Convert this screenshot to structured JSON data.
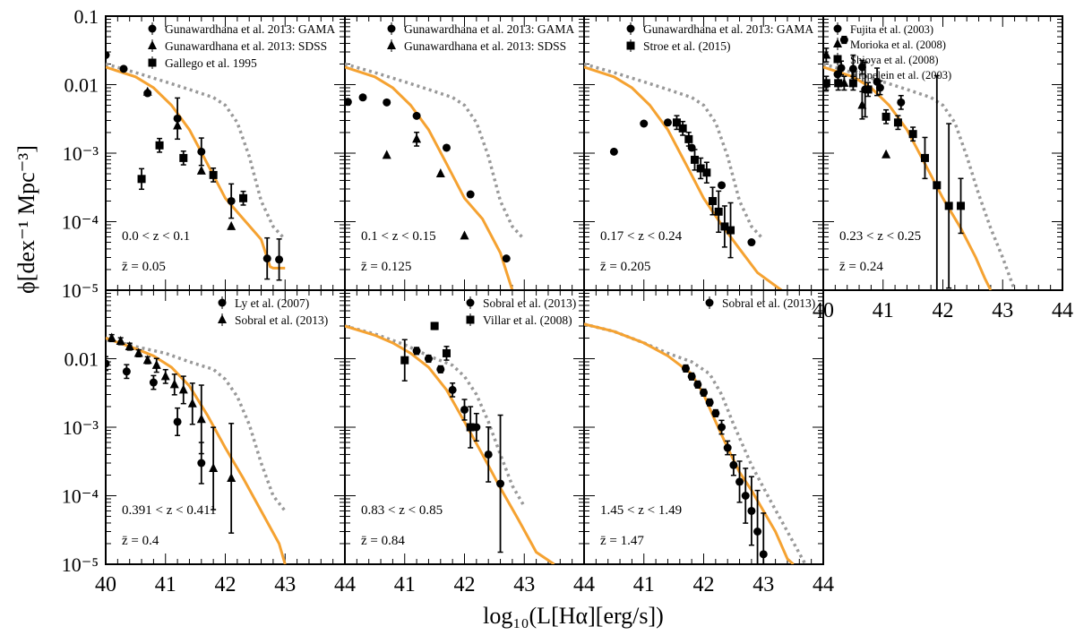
{
  "figure": {
    "ylabel": "ϕ[dex⁻¹ Mpc⁻³]",
    "xlabel": "log₁₀(L[Hα][erg/s])",
    "colors": {
      "model": "#f5a231",
      "alt_model": "#999999",
      "data": "#000000"
    }
  },
  "chart_data": [
    {
      "type": "scatter",
      "panel": "0.0<z<0.1",
      "xlim": [
        40,
        44
      ],
      "ylim": [
        1e-05,
        0.1
      ],
      "yscale": "log",
      "xticks": [],
      "yticks": [
        "0.1",
        "0.01",
        "10⁻³",
        "10⁻⁴",
        "10⁻⁵"
      ],
      "zrange": "0.0 < z < 0.1",
      "zmean": "z̄ = 0.05",
      "series": [
        {
          "name": "Gunawardhana et al. 2013: GAMA",
          "marker": "circle",
          "x": [
            40.0,
            40.3,
            40.7,
            41.2,
            41.6,
            42.1,
            42.7,
            42.9
          ],
          "y": [
            0.027,
            0.017,
            0.0075,
            0.0032,
            0.00105,
            0.0002,
            2.9e-05,
            2.8e-05
          ],
          "err": [
            0,
            0,
            0,
            0.3,
            0.2,
            0.25,
            0.3,
            0.3
          ]
        },
        {
          "name": "Gunawardhana et al. 2013: SDSS",
          "marker": "triangle",
          "x": [
            40.7,
            41.2,
            41.6,
            42.1
          ],
          "y": [
            0.0078,
            0.0025,
            0.00055,
            8.5e-05
          ],
          "err": [
            0,
            0,
            0,
            0
          ]
        },
        {
          "name": "Gallego et al. 1995",
          "marker": "square",
          "x": [
            40.6,
            40.9,
            41.3,
            41.8,
            42.3
          ],
          "y": [
            0.00042,
            0.0013,
            0.00085,
            0.00048,
            0.00022
          ],
          "err": [
            0.15,
            0.1,
            0.1,
            0.1,
            0.1
          ]
        }
      ],
      "model": {
        "x": [
          40.0,
          40.5,
          40.8,
          41.1,
          41.4,
          41.7,
          42.0,
          42.3,
          42.6,
          42.75,
          42.8,
          43.0
        ],
        "y": [
          0.018,
          0.013,
          0.009,
          0.005,
          0.0022,
          0.0007,
          0.00022,
          0.00011,
          5.5e-05,
          2.2e-05,
          2.1e-05,
          2.1e-05
        ]
      },
      "alt_model": {
        "x": [
          40.0,
          40.5,
          41.0,
          41.4,
          41.8,
          42.0,
          42.2,
          42.4,
          42.6,
          42.8,
          43.0
        ],
        "y": [
          0.02,
          0.015,
          0.011,
          0.0085,
          0.0065,
          0.005,
          0.0028,
          0.0009,
          0.0002,
          8.5e-05,
          5.5e-05
        ]
      }
    },
    {
      "type": "scatter",
      "panel": "0.1<z<0.15",
      "xlim": [
        40,
        44
      ],
      "ylim": [
        1e-05,
        0.1
      ],
      "yscale": "log",
      "xticks": [],
      "yticks": [],
      "zrange": "0.1 < z < 0.15",
      "zmean": "z̄ = 0.125",
      "series": [
        {
          "name": "Gunawardhana et al. 2013: GAMA",
          "marker": "circle",
          "x": [
            40.05,
            40.3,
            40.7,
            41.2,
            41.7,
            42.1,
            42.7
          ],
          "y": [
            0.0056,
            0.0065,
            0.0055,
            0.0035,
            0.0012,
            0.00025,
            2.9e-05
          ],
          "err": [
            0,
            0,
            0,
            0,
            0,
            0,
            0
          ]
        },
        {
          "name": "Gunawardhana et al. 2013: SDSS",
          "marker": "triangle",
          "x": [
            40.7,
            41.2,
            41.6,
            42.0
          ],
          "y": [
            0.00093,
            0.0016,
            0.0005,
            6.2e-05
          ],
          "err": [
            0,
            0.1,
            0,
            0
          ]
        }
      ],
      "model": {
        "x": [
          40.0,
          40.5,
          40.8,
          41.1,
          41.4,
          41.7,
          42.0,
          42.3,
          42.6,
          42.8
        ],
        "y": [
          0.018,
          0.013,
          0.009,
          0.005,
          0.0022,
          0.0007,
          0.00022,
          0.00011,
          3.5e-05,
          1e-05
        ]
      },
      "alt_model": {
        "x": [
          40.0,
          40.5,
          41.0,
          41.4,
          41.8,
          42.0,
          42.2,
          42.4,
          42.6,
          42.8,
          43.0
        ],
        "y": [
          0.02,
          0.015,
          0.011,
          0.0085,
          0.0065,
          0.005,
          0.0028,
          0.0009,
          0.0002,
          8.5e-05,
          5.5e-05
        ]
      }
    },
    {
      "type": "scatter",
      "panel": "0.17<z<0.24",
      "xlim": [
        40,
        44
      ],
      "ylim": [
        1e-05,
        0.1
      ],
      "yscale": "log",
      "xticks": [],
      "yticks": [],
      "zrange": "0.17 < z < 0.24",
      "zmean": "z̄ = 0.205",
      "series": [
        {
          "name": "Gunawardhana et al. 2013: GAMA",
          "marker": "circle",
          "x": [
            40.5,
            41.0,
            41.4,
            41.8,
            42.3,
            42.8
          ],
          "y": [
            0.00105,
            0.0027,
            0.0028,
            0.0012,
            0.00034,
            5e-05
          ],
          "err": [
            0,
            0,
            0,
            0,
            0,
            0
          ]
        },
        {
          "name": "Stroe et al. (2015)",
          "marker": "square",
          "x": [
            41.55,
            41.65,
            41.75,
            41.85,
            41.95,
            42.05,
            42.15,
            42.25,
            42.35,
            42.45
          ],
          "y": [
            0.0028,
            0.0023,
            0.0016,
            0.0008,
            0.0006,
            0.00052,
            0.0002,
            0.00014,
            8.5e-05,
            7.5e-05
          ],
          "err": [
            0.1,
            0.1,
            0.1,
            0.15,
            0.15,
            0.15,
            0.2,
            0.3,
            0.3,
            0.4
          ]
        }
      ],
      "model": {
        "x": [
          40.0,
          40.5,
          40.8,
          41.1,
          41.4,
          41.7,
          42.0,
          42.3,
          42.6,
          42.9,
          43.3
        ],
        "y": [
          0.018,
          0.013,
          0.009,
          0.005,
          0.0022,
          0.0007,
          0.00022,
          9e-05,
          4e-05,
          1.8e-05,
          1e-05
        ]
      },
      "alt_model": {
        "x": [
          40.0,
          40.5,
          41.0,
          41.4,
          41.8,
          42.0,
          42.2,
          42.4,
          42.6,
          42.8,
          43.0
        ],
        "y": [
          0.02,
          0.015,
          0.011,
          0.0085,
          0.0065,
          0.005,
          0.0028,
          0.0009,
          0.0002,
          8.5e-05,
          5.5e-05
        ]
      }
    },
    {
      "type": "scatter",
      "panel": "0.23<z<0.25",
      "xlim": [
        40,
        44
      ],
      "ylim": [
        1e-05,
        0.1
      ],
      "yscale": "log",
      "xticks": [
        "40",
        "41",
        "42",
        "43",
        "44"
      ],
      "yticks": [],
      "zrange": "0.23 < z < 0.25",
      "zmean": "z̄ = 0.24",
      "series": [
        {
          "name": "Fujita et al. (2003)",
          "marker": "circle",
          "x": [
            40.35,
            40.65,
            40.95,
            41.3
          ],
          "y": [
            0.045,
            0.018,
            0.009,
            0.0055
          ],
          "err": [
            0.05,
            0.1,
            0.1,
            0.1
          ]
        },
        {
          "name": "Morioka et al. (2008)",
          "marker": "triangle",
          "x": [
            40.05,
            40.35,
            40.65,
            41.05
          ],
          "y": [
            0.027,
            0.0105,
            0.005,
            0.00095
          ],
          "err": [
            0.1,
            0.1,
            0.2,
            0
          ]
        },
        {
          "name": "Shioya et al. (2008)",
          "marker": "square",
          "x": [
            40.05,
            40.25,
            40.5,
            40.75,
            41.05,
            41.25,
            41.5,
            41.7,
            41.9,
            42.1,
            42.3
          ],
          "y": [
            0.0105,
            0.0105,
            0.0105,
            0.0085,
            0.0034,
            0.0028,
            0.0019,
            0.00085,
            0.00034,
            0.00017,
            0.00017
          ],
          "err": [
            0.1,
            0.1,
            0.1,
            0.1,
            0.1,
            0.1,
            0.1,
            0.3,
            1.6,
            1.2,
            0.4
          ]
        },
        {
          "name": "Hippelein et al. (2003)",
          "marker": "circle",
          "x": [
            40.3,
            40.5,
            40.7,
            40.9
          ],
          "y": [
            0.0175,
            0.017,
            0.0085,
            0.011
          ],
          "err": [
            0.1,
            0.2,
            0.4,
            0.2
          ]
        }
      ],
      "model": {
        "x": [
          40.0,
          40.5,
          40.8,
          41.1,
          41.4,
          41.7,
          42.0,
          42.3,
          42.55,
          42.7,
          42.8
        ],
        "y": [
          0.018,
          0.013,
          0.009,
          0.005,
          0.0022,
          0.0007,
          0.00022,
          8e-05,
          3e-05,
          1.5e-05,
          1e-05
        ]
      },
      "alt_model": {
        "x": [
          40.0,
          40.5,
          41.0,
          41.4,
          41.8,
          42.0,
          42.2,
          42.4,
          42.6,
          42.8,
          43.0,
          43.2
        ],
        "y": [
          0.02,
          0.015,
          0.011,
          0.0085,
          0.0065,
          0.005,
          0.0028,
          0.0009,
          0.00025,
          8e-05,
          3e-05,
          1e-05
        ]
      }
    },
    {
      "type": "scatter",
      "panel": "0.391<z<0.411",
      "xlim": [
        40,
        44
      ],
      "ylim": [
        1e-05,
        0.1
      ],
      "yscale": "log",
      "xticks": [
        "40",
        "41",
        "42",
        "43",
        "44"
      ],
      "yticks": [
        "0.01",
        "10⁻³",
        "10⁻⁴",
        "10⁻⁵"
      ],
      "zrange": "0.391 < z < 0.411",
      "zmean": "z̄ = 0.4",
      "series": [
        {
          "name": "Ly et al. (2007)",
          "marker": "circle",
          "x": [
            40.0,
            40.35,
            40.8,
            41.2,
            41.6
          ],
          "y": [
            0.0085,
            0.0065,
            0.0045,
            0.0012,
            0.0003
          ],
          "err": [
            0.1,
            0.1,
            0.1,
            0.2,
            0.3
          ]
        },
        {
          "name": "Sobral et al. (2013)",
          "marker": "triangle",
          "x": [
            40.1,
            40.25,
            40.4,
            40.55,
            40.7,
            40.85,
            41.0,
            41.15,
            41.3,
            41.45,
            41.6,
            41.8,
            42.1
          ],
          "y": [
            0.02,
            0.018,
            0.015,
            0.012,
            0.0095,
            0.008,
            0.0055,
            0.0042,
            0.0035,
            0.0022,
            0.0013,
            0.00025,
            0.00018
          ],
          "err": [
            0.05,
            0.05,
            0.05,
            0.05,
            0.05,
            0.1,
            0.1,
            0.15,
            0.2,
            0.3,
            0.5,
            0.6,
            0.8
          ]
        }
      ],
      "model": {
        "x": [
          40.0,
          40.5,
          40.8,
          41.1,
          41.4,
          41.7,
          42.0,
          42.3,
          42.6,
          42.9,
          43.0
        ],
        "y": [
          0.02,
          0.014,
          0.011,
          0.0075,
          0.004,
          0.0015,
          0.0005,
          0.00018,
          6e-05,
          2e-05,
          1e-05
        ]
      },
      "alt_model": {
        "x": [
          40.0,
          40.5,
          41.0,
          41.4,
          41.8,
          42.0,
          42.2,
          42.4,
          42.6,
          42.8,
          43.0
        ],
        "y": [
          0.02,
          0.015,
          0.012,
          0.009,
          0.007,
          0.005,
          0.0028,
          0.0011,
          0.0003,
          0.0001,
          6e-05
        ]
      }
    },
    {
      "type": "scatter",
      "panel": "0.83<z<0.85",
      "xlim": [
        40,
        44
      ],
      "ylim": [
        1e-05,
        0.1
      ],
      "yscale": "log",
      "xticks": [
        "41",
        "42",
        "43",
        "44"
      ],
      "yticks": [],
      "zrange": "0.83 < z < 0.85",
      "zmean": "z̄ = 0.84",
      "series": [
        {
          "name": "Sobral et al. (2013)",
          "marker": "circle",
          "x": [
            41.2,
            41.4,
            41.6,
            41.8,
            42.0,
            42.2,
            42.4,
            42.6
          ],
          "y": [
            0.013,
            0.01,
            0.007,
            0.0035,
            0.0018,
            0.001,
            0.0004,
            0.00015
          ],
          "err": [
            0.05,
            0.05,
            0.05,
            0.1,
            0.15,
            0.2,
            0.4,
            1.0
          ]
        },
        {
          "name": "Villar et al. (2008)",
          "marker": "square",
          "x": [
            41.0,
            41.5,
            41.7,
            42.1
          ],
          "y": [
            0.0095,
            0.03,
            0.012,
            0.001
          ],
          "err": [
            0.3,
            0.05,
            0.1,
            0.3
          ]
        }
      ],
      "model": {
        "x": [
          40.0,
          40.5,
          40.8,
          41.1,
          41.4,
          41.7,
          42.0,
          42.3,
          42.6,
          42.9,
          43.2,
          43.5
        ],
        "y": [
          0.03,
          0.022,
          0.017,
          0.012,
          0.0075,
          0.0035,
          0.0012,
          0.0004,
          0.00013,
          4.5e-05,
          1.5e-05,
          1e-05
        ]
      },
      "alt_model": {
        "x": [
          40.0,
          40.5,
          41.0,
          41.4,
          41.8,
          42.0,
          42.2,
          42.4,
          42.6,
          42.8,
          43.0
        ],
        "y": [
          0.03,
          0.023,
          0.016,
          0.011,
          0.008,
          0.0055,
          0.003,
          0.0012,
          0.0004,
          0.00014,
          7e-05
        ]
      }
    },
    {
      "type": "scatter",
      "panel": "1.45<z<1.49",
      "xlim": [
        40,
        44
      ],
      "ylim": [
        1e-05,
        0.1
      ],
      "yscale": "log",
      "xticks": [
        "41",
        "42",
        "43",
        "44"
      ],
      "yticks": [],
      "zrange": "1.45 < z < 1.49",
      "zmean": "z̄ = 1.47",
      "series": [
        {
          "name": "Sobral et al. (2013)",
          "marker": "circle",
          "x": [
            41.7,
            41.8,
            41.9,
            42.0,
            42.1,
            42.2,
            42.3,
            42.4,
            42.5,
            42.6,
            42.7,
            42.8,
            42.9,
            43.0
          ],
          "y": [
            0.0072,
            0.0055,
            0.0042,
            0.0032,
            0.0023,
            0.0016,
            0.001,
            0.0005,
            0.00028,
            0.00016,
            0.0001,
            6e-05,
            3e-05,
            1.4e-05
          ],
          "err": [
            0.05,
            0.05,
            0.05,
            0.05,
            0.05,
            0.05,
            0.1,
            0.1,
            0.15,
            0.3,
            0.4,
            0.5,
            0.6,
            0.6
          ]
        }
      ],
      "model": {
        "x": [
          40.0,
          40.5,
          41.0,
          41.4,
          41.8,
          42.0,
          42.2,
          42.4,
          42.6,
          42.8,
          43.0,
          43.2,
          43.4,
          43.5
        ],
        "y": [
          0.032,
          0.025,
          0.017,
          0.011,
          0.006,
          0.003,
          0.0012,
          0.0005,
          0.00022,
          0.00012,
          6e-05,
          3e-05,
          1.2e-05,
          1e-05
        ]
      },
      "alt_model": {
        "x": [
          40.0,
          40.5,
          41.0,
          41.4,
          41.8,
          42.1,
          42.3,
          42.5,
          42.8,
          43.1,
          43.4,
          43.7
        ],
        "y": [
          0.032,
          0.025,
          0.017,
          0.012,
          0.009,
          0.006,
          0.003,
          0.0011,
          0.00028,
          9e-05,
          3e-05,
          1e-05
        ]
      }
    }
  ]
}
